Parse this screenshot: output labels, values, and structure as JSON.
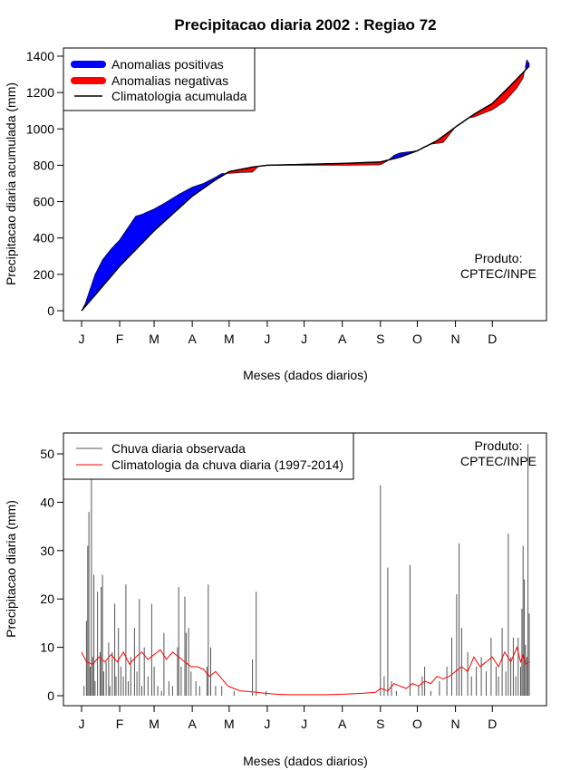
{
  "title": "Precipitacao diaria 2002 : Regiao 72",
  "chart_data": [
    {
      "type": "area",
      "ylabel": "Precipitacao diaria acumulada (mm)",
      "xlabel": "Meses (dados diarios)",
      "xlim": [
        1,
        365
      ],
      "ylim": [
        0,
        1400
      ],
      "yticks": [
        0,
        200,
        400,
        600,
        800,
        1000,
        1200,
        1400
      ],
      "xtick_days": [
        1,
        32,
        60,
        91,
        121,
        152,
        182,
        213,
        244,
        274,
        305,
        335
      ],
      "xtick_labels": [
        "J",
        "F",
        "M",
        "A",
        "M",
        "J",
        "J",
        "A",
        "S",
        "O",
        "N",
        "D"
      ],
      "legend": {
        "position": "top-left",
        "entries": [
          {
            "label": "Anomalias positivas",
            "color": "#0000ff",
            "style": "thick"
          },
          {
            "label": "Anomalias negativas",
            "color": "#ff0000",
            "style": "thick"
          },
          {
            "label": "Climatologia acumulada",
            "color": "#000000",
            "style": "line"
          }
        ]
      },
      "annotation": [
        "Produto:",
        "CPTEC/INPE"
      ],
      "climatology_points": [
        [
          1,
          0
        ],
        [
          15,
          110
        ],
        [
          32,
          245
        ],
        [
          60,
          440
        ],
        [
          91,
          630
        ],
        [
          110,
          720
        ],
        [
          121,
          765
        ],
        [
          140,
          790
        ],
        [
          152,
          800
        ],
        [
          182,
          805
        ],
        [
          213,
          810
        ],
        [
          244,
          818
        ],
        [
          260,
          845
        ],
        [
          274,
          880
        ],
        [
          290,
          935
        ],
        [
          305,
          1010
        ],
        [
          320,
          1080
        ],
        [
          335,
          1140
        ],
        [
          350,
          1240
        ],
        [
          365,
          1345
        ]
      ],
      "observed_points": [
        [
          1,
          0
        ],
        [
          4,
          40
        ],
        [
          8,
          120
        ],
        [
          12,
          200
        ],
        [
          18,
          280
        ],
        [
          25,
          340
        ],
        [
          32,
          390
        ],
        [
          40,
          470
        ],
        [
          45,
          520
        ],
        [
          50,
          530
        ],
        [
          55,
          545
        ],
        [
          60,
          560
        ],
        [
          68,
          590
        ],
        [
          80,
          640
        ],
        [
          91,
          680
        ],
        [
          100,
          700
        ],
        [
          110,
          735
        ],
        [
          115,
          755
        ],
        [
          121,
          755
        ],
        [
          130,
          760
        ],
        [
          140,
          762
        ],
        [
          145,
          795
        ],
        [
          152,
          800
        ],
        [
          182,
          800
        ],
        [
          213,
          800
        ],
        [
          244,
          802
        ],
        [
          250,
          825
        ],
        [
          255,
          855
        ],
        [
          260,
          868
        ],
        [
          274,
          880
        ],
        [
          284,
          915
        ],
        [
          295,
          925
        ],
        [
          305,
          1010
        ],
        [
          315,
          1060
        ],
        [
          320,
          1065
        ],
        [
          335,
          1105
        ],
        [
          345,
          1150
        ],
        [
          355,
          1225
        ],
        [
          360,
          1280
        ],
        [
          363,
          1380
        ],
        [
          365,
          1360
        ]
      ]
    },
    {
      "type": "bar",
      "ylabel": "Precipitacao diaria (mm)",
      "xlabel": "Meses (dados diarios)",
      "xlim": [
        1,
        365
      ],
      "ylim": [
        0,
        50
      ],
      "yticks": [
        0,
        10,
        20,
        30,
        40,
        50
      ],
      "xtick_days": [
        1,
        32,
        60,
        91,
        121,
        152,
        182,
        213,
        244,
        274,
        305,
        335
      ],
      "xtick_labels": [
        "J",
        "F",
        "M",
        "A",
        "M",
        "J",
        "J",
        "A",
        "S",
        "O",
        "N",
        "D"
      ],
      "legend": {
        "position": "top-left",
        "entries": [
          {
            "label": "Chuva diaria observada",
            "color": "#555555",
            "style": "line"
          },
          {
            "label": "Climatologia da chuva diaria (1997-2014)",
            "color": "#ff0000",
            "style": "line"
          }
        ]
      },
      "annotation": [
        "Produto:",
        "CPTEC/INPE"
      ],
      "observed_daily": [
        [
          3,
          2
        ],
        [
          5,
          15.5
        ],
        [
          6,
          31
        ],
        [
          7,
          38
        ],
        [
          8,
          6
        ],
        [
          9,
          45
        ],
        [
          10,
          8
        ],
        [
          11,
          25
        ],
        [
          12,
          3
        ],
        [
          14,
          21.5
        ],
        [
          16,
          9
        ],
        [
          17,
          22.5
        ],
        [
          18,
          25
        ],
        [
          19,
          5
        ],
        [
          21,
          7
        ],
        [
          23,
          11
        ],
        [
          24,
          2
        ],
        [
          26,
          9
        ],
        [
          28,
          19
        ],
        [
          29,
          4
        ],
        [
          31,
          14
        ],
        [
          33,
          6
        ],
        [
          35,
          4
        ],
        [
          37,
          23
        ],
        [
          39,
          3
        ],
        [
          41,
          8
        ],
        [
          44,
          14
        ],
        [
          46,
          5
        ],
        [
          48,
          20
        ],
        [
          50,
          2
        ],
        [
          52,
          10
        ],
        [
          55,
          4
        ],
        [
          58,
          19
        ],
        [
          60,
          6
        ],
        [
          63,
          2
        ],
        [
          66,
          1
        ],
        [
          68,
          13
        ],
        [
          72,
          3
        ],
        [
          75,
          2
        ],
        [
          79,
          10
        ],
        [
          80,
          22.5
        ],
        [
          82,
          6
        ],
        [
          85,
          20.5
        ],
        [
          86,
          13
        ],
        [
          88,
          14
        ],
        [
          90,
          5
        ],
        [
          94,
          3
        ],
        [
          97,
          2
        ],
        [
          103,
          6
        ],
        [
          104,
          23
        ],
        [
          106,
          10
        ],
        [
          110,
          2
        ],
        [
          115,
          2
        ],
        [
          125,
          1
        ],
        [
          140,
          7.5
        ],
        [
          143,
          21.5
        ],
        [
          151,
          1
        ],
        [
          244,
          43.5
        ],
        [
          247,
          4
        ],
        [
          250,
          26.5
        ],
        [
          253,
          3
        ],
        [
          257,
          1
        ],
        [
          268,
          27
        ],
        [
          275,
          2
        ],
        [
          278,
          4
        ],
        [
          280,
          6
        ],
        [
          285,
          1
        ],
        [
          292,
          3
        ],
        [
          298,
          6
        ],
        [
          302,
          12
        ],
        [
          306,
          21
        ],
        [
          308,
          31.5
        ],
        [
          310,
          14
        ],
        [
          315,
          9
        ],
        [
          318,
          4
        ],
        [
          322,
          6
        ],
        [
          326,
          8
        ],
        [
          330,
          5
        ],
        [
          334,
          12
        ],
        [
          338,
          6
        ],
        [
          340,
          4
        ],
        [
          343,
          14
        ],
        [
          346,
          5
        ],
        [
          348,
          33.5
        ],
        [
          350,
          8
        ],
        [
          352,
          12
        ],
        [
          354,
          4
        ],
        [
          356,
          12
        ],
        [
          358,
          6
        ],
        [
          359,
          18
        ],
        [
          360,
          31
        ],
        [
          361,
          24
        ],
        [
          362,
          10.5
        ],
        [
          363,
          8
        ],
        [
          364,
          52
        ],
        [
          365,
          17
        ]
      ],
      "climatology_daily": [
        [
          1,
          9
        ],
        [
          5,
          7
        ],
        [
          10,
          6.5
        ],
        [
          15,
          8
        ],
        [
          20,
          7
        ],
        [
          25,
          8.5
        ],
        [
          30,
          7
        ],
        [
          35,
          9
        ],
        [
          40,
          6.5
        ],
        [
          45,
          8
        ],
        [
          50,
          9
        ],
        [
          55,
          7.5
        ],
        [
          60,
          8.5
        ],
        [
          65,
          9.5
        ],
        [
          70,
          7.5
        ],
        [
          75,
          9
        ],
        [
          80,
          8
        ],
        [
          85,
          7
        ],
        [
          90,
          6
        ],
        [
          95,
          6
        ],
        [
          100,
          5.5
        ],
        [
          105,
          4
        ],
        [
          110,
          5
        ],
        [
          115,
          3.5
        ],
        [
          120,
          2
        ],
        [
          125,
          1.5
        ],
        [
          130,
          1
        ],
        [
          140,
          0.8
        ],
        [
          150,
          0.5
        ],
        [
          160,
          0.3
        ],
        [
          170,
          0.2
        ],
        [
          182,
          0.2
        ],
        [
          200,
          0.2
        ],
        [
          213,
          0.3
        ],
        [
          230,
          0.5
        ],
        [
          240,
          0.7
        ],
        [
          244,
          1.5
        ],
        [
          250,
          1
        ],
        [
          255,
          2.5
        ],
        [
          260,
          2
        ],
        [
          265,
          1.5
        ],
        [
          270,
          2.5
        ],
        [
          275,
          2
        ],
        [
          280,
          3
        ],
        [
          285,
          2.5
        ],
        [
          290,
          4
        ],
        [
          295,
          3.5
        ],
        [
          300,
          4
        ],
        [
          305,
          5
        ],
        [
          310,
          6
        ],
        [
          315,
          5
        ],
        [
          320,
          8
        ],
        [
          325,
          6
        ],
        [
          330,
          7
        ],
        [
          335,
          8
        ],
        [
          340,
          6
        ],
        [
          345,
          9
        ],
        [
          350,
          7
        ],
        [
          355,
          10
        ],
        [
          358,
          7
        ],
        [
          360,
          8.5
        ],
        [
          362,
          6.5
        ],
        [
          365,
          7
        ]
      ]
    }
  ]
}
